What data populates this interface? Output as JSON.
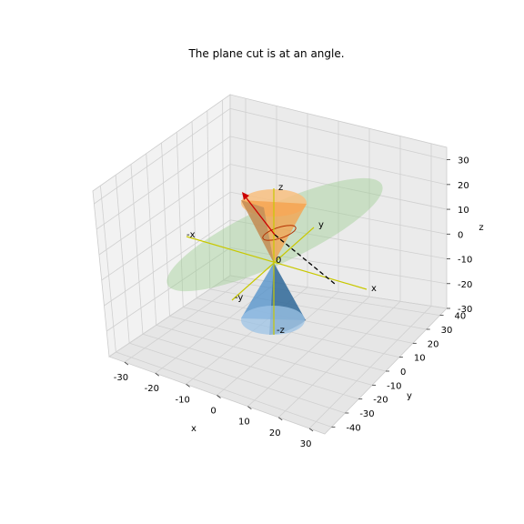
{
  "chart_data": {
    "type": "surface3d",
    "title": "The plane cut is at an angle.",
    "xlabel": "x",
    "ylabel": "y",
    "zlabel": "z",
    "xlim": [
      -35,
      35
    ],
    "ylim": [
      -45,
      45
    ],
    "zlim": [
      -30,
      35
    ],
    "xticks": [
      -30,
      -20,
      -10,
      0,
      10,
      20,
      30
    ],
    "yticks": [
      -40,
      -30,
      -20,
      -10,
      0,
      10,
      20,
      30,
      40
    ],
    "zticks": [
      -30,
      -20,
      -10,
      0,
      10,
      20,
      30
    ],
    "grid": true,
    "surfaces": [
      {
        "name": "upper cone",
        "color": "#f5a04a",
        "z_range": [
          0,
          20
        ]
      },
      {
        "name": "lower cone",
        "color": "#4d8fc9",
        "z_range": [
          -20,
          0
        ]
      },
      {
        "name": "cutting plane",
        "color": "#9fcf94"
      }
    ],
    "axes_lines": [
      {
        "label_pos": "x",
        "label_neg": "-x",
        "color": "#c8c800"
      },
      {
        "label_pos": "y",
        "label_neg": "-y",
        "color": "#c8c800"
      },
      {
        "label_pos": "z",
        "label_neg": "-z",
        "color": "#c8c800"
      }
    ],
    "origin_label": "0"
  }
}
